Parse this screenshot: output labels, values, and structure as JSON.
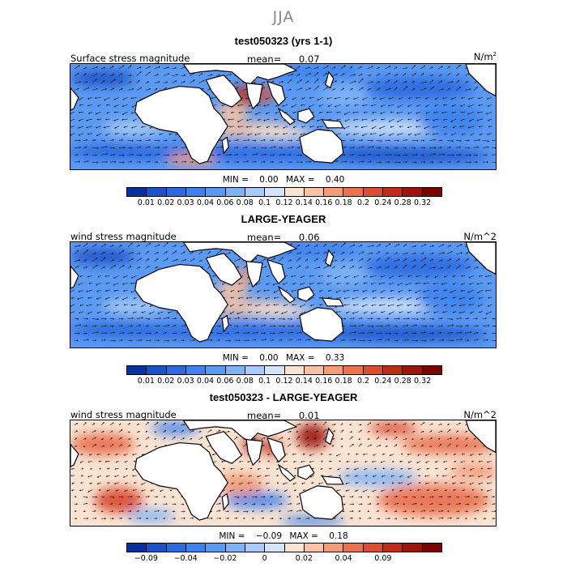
{
  "season": "JJA",
  "colors": {
    "levels": [
      "#08309e",
      "#1b52c8",
      "#2b6ae0",
      "#3d82ee",
      "#5b9af3",
      "#7fb3f7",
      "#a8cbfa",
      "#d3e4fc",
      "#fbe3d2",
      "#f9c2a4",
      "#f49b77",
      "#ea7250",
      "#da4d30",
      "#c02c18",
      "#9d1409",
      "#7a0603"
    ],
    "land": "#ffffff",
    "vector": "#111111"
  },
  "panels": [
    {
      "id": "model",
      "title": "test050323 (yrs 1-1)",
      "field_label": "Surface stress magnitude",
      "mean_label": "mean=",
      "mean_value": "0.07",
      "units": "N/m",
      "units_sup": "2",
      "min_label": "MIN =",
      "min_value": "0.00",
      "max_label": "MAX =",
      "max_value": "0.40",
      "ticks": [
        "0.01",
        "0.02",
        "0.03",
        "0.04",
        "0.06",
        "0.08",
        "0.1",
        "0.12",
        "0.14",
        "0.16",
        "0.18",
        "0.2",
        "0.24",
        "0.28",
        "0.32"
      ]
    },
    {
      "id": "obs",
      "title": "LARGE-YEAGER",
      "field_label": "wind stress magnitude",
      "mean_label": "mean=",
      "mean_value": "0.06",
      "units": "N/m^2",
      "units_sup": "",
      "min_label": "MIN =",
      "min_value": "0.00",
      "max_label": "MAX =",
      "max_value": "0.33",
      "ticks": [
        "0.01",
        "0.02",
        "0.03",
        "0.04",
        "0.06",
        "0.08",
        "0.1",
        "0.12",
        "0.14",
        "0.16",
        "0.18",
        "0.2",
        "0.24",
        "0.28",
        "0.32"
      ]
    },
    {
      "id": "diff",
      "title": "test050323 - LARGE-YEAGER",
      "field_label": "wind stress magnitude",
      "mean_label": "mean=",
      "mean_value": "0.01",
      "units": "N/m^2",
      "units_sup": "",
      "min_label": "MIN =",
      "min_value": "−0.09",
      "max_label": "MAX =",
      "max_value": "0.18",
      "ticks": [
        "−0.09",
        "−0.04",
        "−0.02",
        "0",
        "0.02",
        "0.04",
        "0.09"
      ],
      "tick_boundaries": [
        1,
        3,
        5,
        7,
        9,
        11,
        13
      ]
    }
  ]
}
